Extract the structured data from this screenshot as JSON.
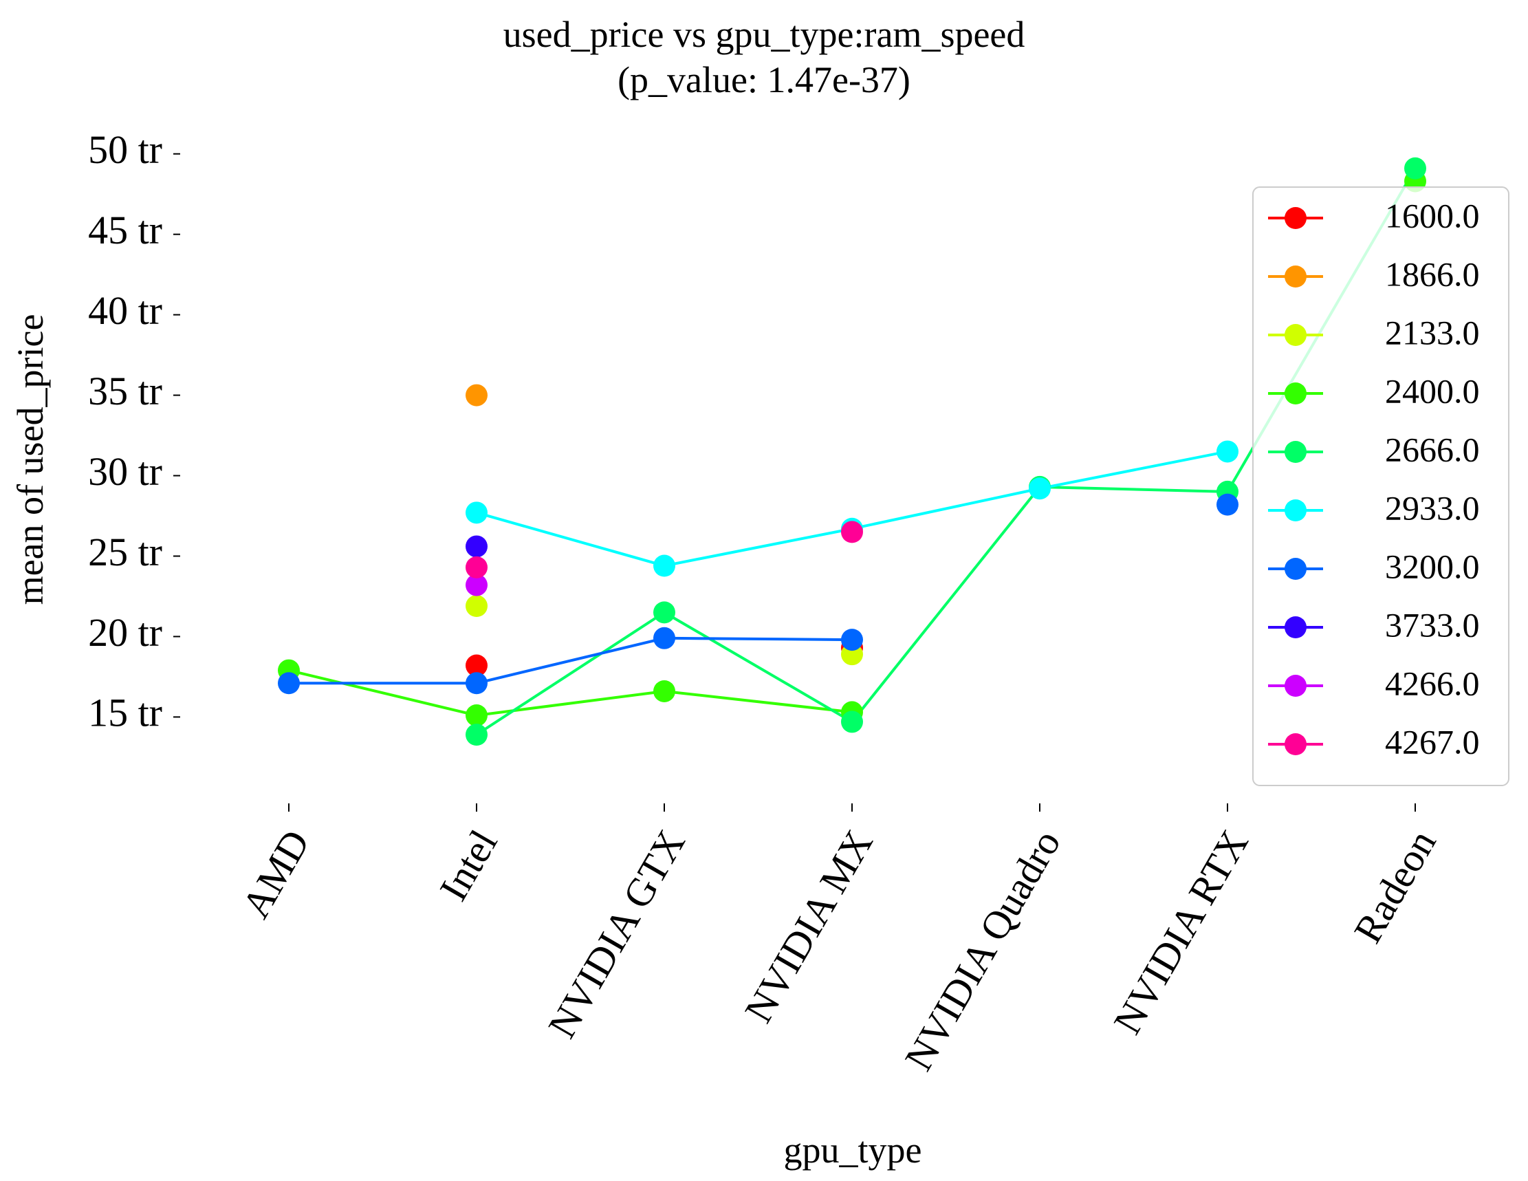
{
  "chart_data": {
    "type": "line",
    "title": "used_price vs gpu_type:ram_speed",
    "subtitle": "(p_value: 1.47e-37)",
    "xlabel": "gpu_type",
    "ylabel": "mean of used_price",
    "categories": [
      "AMD",
      "Intel",
      "NVIDIA GTX",
      "NVIDIA MX",
      "NVIDIA Quadro",
      "NVIDIA RTX",
      "Radeon"
    ],
    "ylim": [
      10.4,
      50.8
    ],
    "yticks": [
      15,
      20,
      25,
      30,
      35,
      40,
      45,
      50
    ],
    "ytick_labels": [
      "15 tr",
      "20 tr",
      "25 tr",
      "30 tr",
      "35 tr",
      "40 tr",
      "45 tr",
      "50 tr"
    ],
    "grid": false,
    "legend_position": "upper right",
    "series": [
      {
        "name": "1600.0",
        "color": "#ff0000",
        "values": [
          null,
          18.2,
          null,
          19.3,
          null,
          null,
          null
        ]
      },
      {
        "name": "1866.0",
        "color": "#ff9500",
        "values": [
          null,
          35.0,
          null,
          null,
          null,
          null,
          null
        ]
      },
      {
        "name": "2133.0",
        "color": "#d0ff00",
        "values": [
          null,
          21.9,
          null,
          18.9,
          null,
          null,
          null
        ]
      },
      {
        "name": "2400.0",
        "color": "#33ff00",
        "values": [
          17.9,
          15.1,
          16.6,
          15.3,
          null,
          null,
          48.3
        ]
      },
      {
        "name": "2666.0",
        "color": "#00ff66",
        "values": [
          null,
          13.9,
          21.5,
          14.7,
          29.3,
          29.0,
          49.1
        ]
      },
      {
        "name": "2933.0",
        "color": "#00ffff",
        "values": [
          null,
          27.7,
          24.4,
          26.7,
          29.2,
          31.5,
          null
        ]
      },
      {
        "name": "3200.0",
        "color": "#0066ff",
        "values": [
          17.1,
          17.1,
          19.9,
          19.8,
          null,
          28.2,
          null
        ]
      },
      {
        "name": "3733.0",
        "color": "#3300ff",
        "values": [
          null,
          25.6,
          null,
          null,
          null,
          null,
          null
        ]
      },
      {
        "name": "4266.0",
        "color": "#cc00ff",
        "values": [
          null,
          23.2,
          null,
          null,
          null,
          null,
          null
        ]
      },
      {
        "name": "4267.0",
        "color": "#ff0095",
        "values": [
          null,
          24.3,
          null,
          26.5,
          null,
          null,
          null
        ]
      }
    ]
  }
}
